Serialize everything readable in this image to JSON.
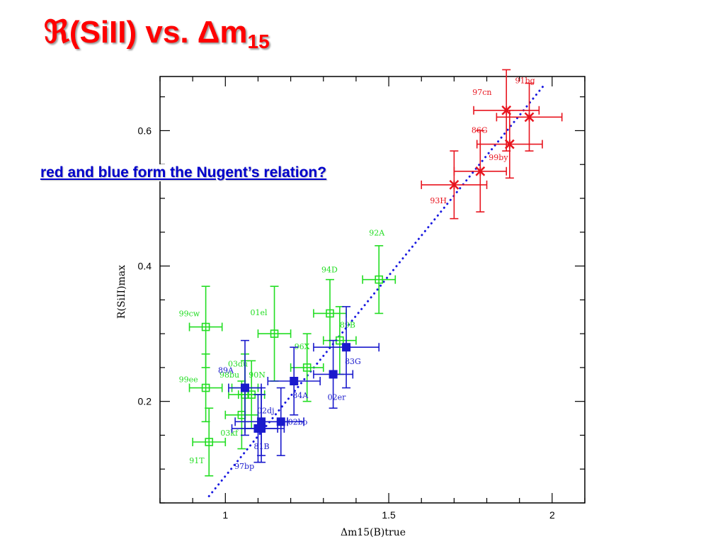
{
  "slide": {
    "title_main": "(SiII) vs. Δm",
    "title_symbol": "ℜ",
    "title_sub": "15",
    "question": "red and blue form the Nugent’s relation?"
  },
  "colors": {
    "red": "#e8141e",
    "green": "#22dd22",
    "blue": "#1a1acc",
    "fit_line": "#1a1ae0",
    "title": "#ff0000",
    "question": "#0000cc"
  },
  "chart_data": {
    "type": "scatter",
    "xlabel": "Δm15(B)true",
    "ylabel": "R(SiII)max",
    "xlim": [
      0.8,
      2.1
    ],
    "ylim": [
      0.05,
      0.68
    ],
    "xticks": [
      1,
      1.5,
      2
    ],
    "yticks": [
      0.2,
      0.4,
      0.6
    ],
    "xtick_labels": [
      "1",
      "1.5",
      "2"
    ],
    "ytick_labels": [
      "0.2",
      "0.4",
      "0.6"
    ],
    "series": [
      {
        "color": "red",
        "marker": "star",
        "points": [
          {
            "label": "91bg",
            "x": 1.93,
            "y": 0.62,
            "xerr": 0.1,
            "yerr": 0.05
          },
          {
            "label": "97cn",
            "x": 1.86,
            "y": 0.63,
            "xerr": 0.1,
            "yerr": 0.06
          },
          {
            "label": "86G",
            "x": 1.87,
            "y": 0.58,
            "xerr": 0.1,
            "yerr": 0.05
          },
          {
            "label": "99by",
            "x": 1.78,
            "y": 0.54,
            "xerr": 0.08,
            "yerr": 0.06
          },
          {
            "label": "93H",
            "x": 1.7,
            "y": 0.52,
            "xerr": 0.1,
            "yerr": 0.05
          }
        ]
      },
      {
        "color": "green",
        "marker": "open-square",
        "points": [
          {
            "label": "92A",
            "x": 1.47,
            "y": 0.38,
            "xerr": 0.05,
            "yerr": 0.05
          },
          {
            "label": "94D",
            "x": 1.32,
            "y": 0.33,
            "xerr": 0.05,
            "yerr": 0.05
          },
          {
            "label": "01el",
            "x": 1.15,
            "y": 0.3,
            "xerr": 0.05,
            "yerr": 0.07
          },
          {
            "label": "99cw",
            "x": 0.94,
            "y": 0.31,
            "xerr": 0.05,
            "yerr": 0.06
          },
          {
            "label": "96X",
            "x": 1.25,
            "y": 0.25,
            "xerr": 0.05,
            "yerr": 0.05
          },
          {
            "label": "89B",
            "x": 1.35,
            "y": 0.29,
            "xerr": 0.05,
            "yerr": 0.05
          },
          {
            "label": "03du",
            "x": 1.06,
            "y": 0.22,
            "xerr": 0.04,
            "yerr": 0.05
          },
          {
            "label": "98bu",
            "x": 1.06,
            "y": 0.21,
            "xerr": 0.05,
            "yerr": 0.05
          },
          {
            "label": "90N",
            "x": 1.08,
            "y": 0.21,
            "xerr": 0.04,
            "yerr": 0.05
          },
          {
            "label": "99ee",
            "x": 0.94,
            "y": 0.22,
            "xerr": 0.05,
            "yerr": 0.05
          },
          {
            "label": "91T",
            "x": 0.95,
            "y": 0.14,
            "xerr": 0.05,
            "yerr": 0.05
          },
          {
            "label": "03kf",
            "x": 1.05,
            "y": 0.18,
            "xerr": 0.05,
            "yerr": 0.05
          }
        ]
      },
      {
        "color": "blue",
        "marker": "filled-square",
        "points": [
          {
            "label": "83G",
            "x": 1.37,
            "y": 0.28,
            "xerr": 0.1,
            "yerr": 0.06
          },
          {
            "label": "02er",
            "x": 1.33,
            "y": 0.24,
            "xerr": 0.06,
            "yerr": 0.05
          },
          {
            "label": "84A",
            "x": 1.21,
            "y": 0.23,
            "xerr": 0.08,
            "yerr": 0.05
          },
          {
            "label": "89A",
            "x": 1.06,
            "y": 0.22,
            "xerr": 0.05,
            "yerr": 0.07
          },
          {
            "label": "02dj",
            "x": 1.11,
            "y": 0.17,
            "xerr": 0.08,
            "yerr": 0.05
          },
          {
            "label": "02bo",
            "x": 1.17,
            "y": 0.17,
            "xerr": 0.07,
            "yerr": 0.05
          },
          {
            "label": "81B",
            "x": 1.1,
            "y": 0.16,
            "xerr": 0.08,
            "yerr": 0.05
          },
          {
            "label": "97bp",
            "x": 1.11,
            "y": 0.16,
            "xerr": 0.05,
            "yerr": 0.05
          }
        ]
      }
    ],
    "fit_line": {
      "style": "dotted",
      "x": [
        0.95,
        1.98
      ],
      "y": [
        0.06,
        0.67
      ]
    }
  }
}
